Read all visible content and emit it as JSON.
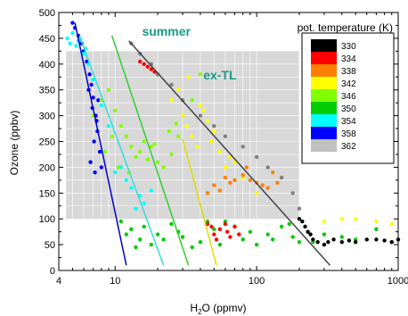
{
  "chart_data": {
    "type": "scatter",
    "xscale": "log",
    "xlim": [
      4,
      1000
    ],
    "ylim": [
      0,
      500
    ],
    "x_ticks": [
      4,
      10,
      100,
      1000
    ],
    "x_tick_labels": [
      "4",
      "10",
      "100",
      "1000"
    ],
    "y_ticks": [
      0,
      50,
      100,
      150,
      200,
      250,
      300,
      350,
      400,
      450,
      500
    ],
    "y_tick_labels": [
      "0",
      "50",
      "100",
      "150",
      "200",
      "250",
      "300",
      "350",
      "400",
      "450",
      "500"
    ],
    "xlabel_main": "H",
    "xlabel_sub": "2",
    "xlabel_rest": "O (ppmv)",
    "ylabel": "Ozone (ppbv)",
    "annotations": [
      {
        "text": "summer",
        "x": 23,
        "y": 455,
        "color": "#1a9a8a"
      },
      {
        "text": "ex-TL",
        "x": 55,
        "y": 370,
        "color": "#1a9a8a"
      }
    ],
    "shaded_region": {
      "x": [
        4.5,
        200
      ],
      "y": [
        100,
        425
      ],
      "color": "#d8d8d8"
    },
    "legend": {
      "title": "pot. temperature (K)",
      "position": "top-right",
      "entries": [
        {
          "label": "330",
          "color": "#000000"
        },
        {
          "label": "334",
          "color": "#ff0000"
        },
        {
          "label": "338",
          "color": "#ff8000"
        },
        {
          "label": "342",
          "color": "#ffff00"
        },
        {
          "label": "346",
          "color": "#80ff00"
        },
        {
          "label": "350",
          "color": "#00cc00"
        },
        {
          "label": "354",
          "color": "#00ffff"
        },
        {
          "label": "358",
          "color": "#0000ff"
        },
        {
          "label": "362",
          "color": "#c0c0c0"
        }
      ]
    },
    "mixing_lines": [
      {
        "color": "#0000cc",
        "x": [
          5.2,
          12
        ],
        "y": [
          480,
          10
        ]
      },
      {
        "color": "#33dddd",
        "x": [
          5.6,
          22
        ],
        "y": [
          455,
          10
        ]
      },
      {
        "color": "#33cc33",
        "x": [
          9.5,
          33
        ],
        "y": [
          455,
          10
        ]
      },
      {
        "color": "#dddd00",
        "x": [
          30,
          52
        ],
        "y": [
          255,
          10
        ]
      },
      {
        "color": "#444444",
        "x": [
          12.5,
          330
        ],
        "y": [
          445,
          10
        ]
      }
    ],
    "series": [
      {
        "color": "#0000ff",
        "x": [
          5,
          5.2,
          5.5,
          5.8,
          6.0,
          6.3,
          6.6,
          6.8,
          7.0,
          7.3,
          7.5,
          7.8,
          8.0,
          7.2,
          6.5,
          6.9,
          7.4,
          7.1,
          6.7,
          7.6
        ],
        "y": [
          480,
          470,
          455,
          440,
          425,
          405,
          380,
          360,
          335,
          300,
          270,
          230,
          200,
          190,
          350,
          315,
          290,
          250,
          210,
          330
        ]
      },
      {
        "color": "#00ffff",
        "x": [
          4.6,
          4.8,
          5.0,
          5.3,
          5.5,
          6.0,
          6.5,
          7.0,
          8.0,
          9.0,
          11,
          13,
          15,
          18,
          12,
          10,
          16,
          14,
          6.2,
          5.7
        ],
        "y": [
          450,
          440,
          460,
          435,
          445,
          420,
          400,
          370,
          320,
          280,
          200,
          160,
          145,
          155,
          175,
          190,
          130,
          120,
          430,
          448
        ]
      },
      {
        "color": "#80ff00",
        "x": [
          7,
          8,
          9,
          10,
          11,
          12,
          13,
          14,
          15,
          16,
          18,
          20,
          22,
          25,
          28,
          30,
          35,
          40,
          9.5,
          8.5,
          10.5,
          12.5,
          17,
          19,
          24,
          27
        ],
        "y": [
          300,
          330,
          350,
          310,
          280,
          260,
          240,
          220,
          230,
          250,
          240,
          210,
          200,
          225,
          260,
          300,
          330,
          380,
          260,
          230,
          200,
          190,
          215,
          245,
          270,
          285
        ]
      },
      {
        "color": "#00cc00",
        "x": [
          11,
          13,
          15,
          18,
          20,
          25,
          30,
          35,
          40,
          50,
          60,
          70,
          80,
          100,
          120,
          150,
          180,
          200,
          12,
          14,
          16,
          22,
          28,
          45,
          55,
          90,
          130,
          170,
          250,
          300,
          400,
          500,
          700,
          900
        ],
        "y": [
          95,
          80,
          60,
          50,
          70,
          90,
          65,
          45,
          55,
          80,
          95,
          85,
          60,
          50,
          70,
          85,
          65,
          55,
          70,
          45,
          85,
          60,
          75,
          95,
          50,
          75,
          60,
          90,
          55,
          70,
          65,
          60,
          80,
          55
        ]
      },
      {
        "color": "#ffff00",
        "x": [
          25,
          28,
          30,
          32,
          35,
          38,
          40,
          45,
          50,
          55,
          60,
          70,
          80,
          100,
          33,
          42,
          48,
          65,
          300,
          400,
          500,
          700,
          900
        ],
        "y": [
          330,
          350,
          300,
          280,
          260,
          240,
          320,
          290,
          270,
          230,
          200,
          210,
          180,
          150,
          375,
          310,
          250,
          220,
          95,
          100,
          100,
          95,
          90
        ]
      },
      {
        "color": "#ff8000",
        "x": [
          45,
          50,
          55,
          60,
          65,
          70,
          80,
          90,
          100,
          110,
          120,
          140,
          150,
          130,
          85
        ],
        "y": [
          150,
          165,
          155,
          180,
          170,
          175,
          185,
          175,
          170,
          165,
          160,
          170,
          180,
          190,
          200
        ]
      },
      {
        "color": "#ff0000",
        "x": [
          15,
          16,
          17,
          18,
          19,
          20,
          45,
          48,
          50,
          52,
          55,
          60,
          62,
          65,
          70,
          75
        ],
        "y": [
          405,
          400,
          395,
          390,
          385,
          380,
          90,
          85,
          70,
          60,
          80,
          90,
          75,
          65,
          85,
          70
        ]
      },
      {
        "color": "#000000",
        "x": [
          200,
          210,
          220,
          230,
          240,
          250,
          270,
          300,
          320,
          350,
          400,
          450,
          500,
          600,
          700,
          800,
          900,
          1000
        ],
        "y": [
          100,
          95,
          85,
          75,
          70,
          60,
          55,
          50,
          55,
          60,
          55,
          58,
          55,
          60,
          60,
          58,
          55,
          60
        ]
      },
      {
        "color": "#808080",
        "x": [
          13,
          15,
          18,
          20,
          25,
          30,
          40,
          50,
          60,
          80,
          100,
          120,
          150,
          180,
          200
        ],
        "y": [
          440,
          420,
          400,
          380,
          360,
          330,
          300,
          280,
          260,
          240,
          220,
          200,
          180,
          150,
          120
        ]
      }
    ]
  }
}
